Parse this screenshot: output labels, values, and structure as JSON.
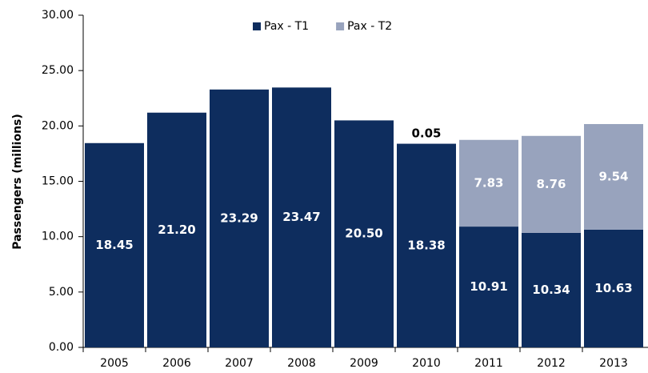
{
  "chart_data": {
    "type": "stacked_bar",
    "y_label": "Passengers (millions)",
    "categories": [
      "2005",
      "2006",
      "2007",
      "2008",
      "2009",
      "2010",
      "2011",
      "2012",
      "2013"
    ],
    "series": [
      {
        "name": "Pax - T1",
        "color": "#0e2d5e",
        "values": [
          18.45,
          21.2,
          23.29,
          23.47,
          20.5,
          18.38,
          10.91,
          10.34,
          10.63
        ],
        "value_labels": [
          "18.45",
          "21.20",
          "23.29",
          "23.47",
          "20.50",
          "18.38",
          "10.91",
          "10.34",
          "10.63"
        ]
      },
      {
        "name": "Pax - T2",
        "color": "#98a3bd",
        "values": [
          null,
          null,
          null,
          null,
          null,
          0.05,
          7.83,
          8.76,
          9.54
        ],
        "value_labels": [
          null,
          null,
          null,
          null,
          null,
          "0.05",
          "7.83",
          "8.76",
          "9.54"
        ]
      }
    ],
    "ylim": [
      0,
      30
    ],
    "yticks": [
      {
        "value": 0,
        "label": "0.00"
      },
      {
        "value": 5,
        "label": "5.00"
      },
      {
        "value": 10,
        "label": "10.00"
      },
      {
        "value": 15,
        "label": "15.00"
      },
      {
        "value": 20,
        "label": "20.00"
      },
      {
        "value": 25,
        "label": "25.00"
      },
      {
        "value": 30,
        "label": "30.00"
      }
    ],
    "legend": "top"
  }
}
